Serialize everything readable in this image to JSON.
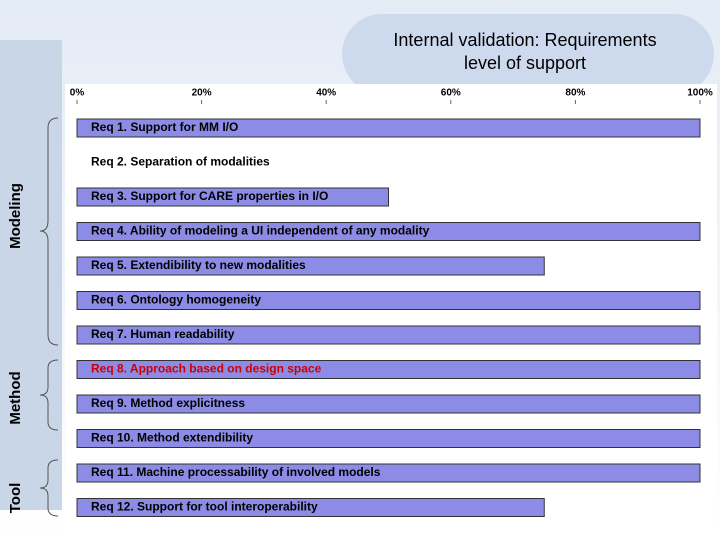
{
  "chart_data": {
    "type": "bar",
    "orientation": "horizontal",
    "title": "Internal validation: Requirements level of support",
    "categories": [
      "Req 1. Support for MM I/O",
      "Req 2. Separation of modalities",
      "Req 3. Support for CARE properties in I/O",
      "Req 4. Ability of modeling a UI independent of any modality",
      "Req 5. Extendibility to new modalities",
      "Req 6. Ontology homogeneity",
      "Req 7. Human readability",
      "Req 8. Approach based on design space",
      "Req 9. Method explicitness",
      "Req 10. Method extendibility",
      "Req 11. Machine processability of involved models",
      "Req 12. Support for tool interoperability"
    ],
    "values": [
      100,
      0,
      50,
      100,
      75,
      100,
      100,
      100,
      100,
      100,
      100,
      75
    ],
    "color": "#8c8ce6",
    "label_colors": [
      "#000000",
      "#000000",
      "#000000",
      "#000000",
      "#000000",
      "#000000",
      "#000000",
      "#cc0000",
      "#000000",
      "#000000",
      "#000000",
      "#000000"
    ],
    "xlim": [
      0,
      100
    ],
    "xticks": [
      {
        "value": 0,
        "label": "0%"
      },
      {
        "value": 20,
        "label": "20%"
      },
      {
        "value": 40,
        "label": "40%"
      },
      {
        "value": 60,
        "label": "60%"
      },
      {
        "value": 80,
        "label": "80%"
      },
      {
        "value": 100,
        "label": "100%"
      }
    ],
    "groups": [
      "Modeling",
      "Method",
      "Tool"
    ]
  }
}
